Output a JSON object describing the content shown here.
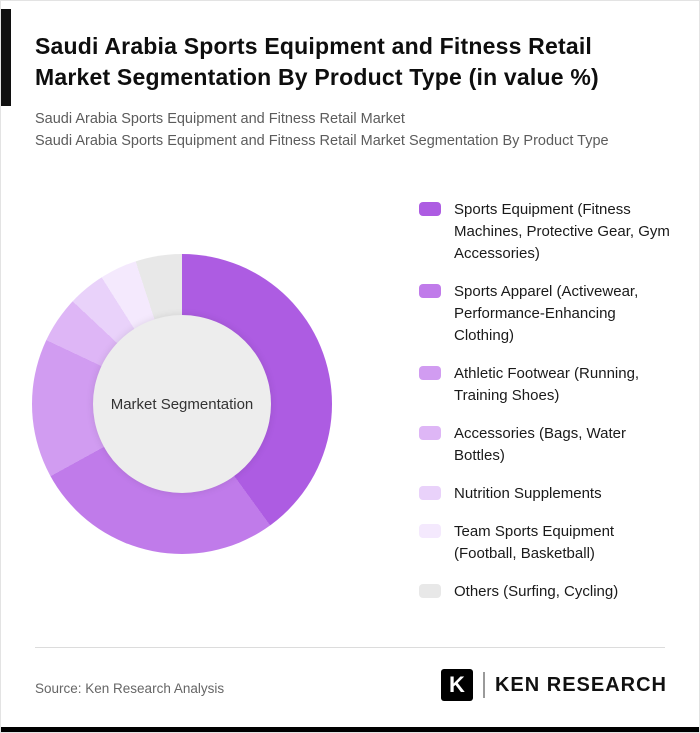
{
  "header": {
    "title": "Saudi Arabia Sports Equipment and Fitness Retail Market Segmentation By Product Type (in value %)",
    "subtitle1": "Saudi Arabia Sports Equipment and Fitness Retail Market",
    "subtitle2": "Saudi Arabia Sports Equipment and Fitness Retail Market Segmentation By Product Type"
  },
  "chart_data": {
    "type": "pie",
    "donut": true,
    "center_label": "Market Segmentation",
    "legend_position": "right",
    "center_fill": "#ededed",
    "segments": [
      {
        "label": "Sports Equipment (Fitness Machines, Protective Gear, Gym Accessories)",
        "value": 40,
        "color": "#ad5ce2"
      },
      {
        "label": "Sports Apparel (Activewear, Performance-Enhancing Clothing)",
        "value": 27,
        "color": "#c07bea"
      },
      {
        "label": "Athletic Footwear (Running, Training Shoes)",
        "value": 15,
        "color": "#d19cf1"
      },
      {
        "label": "Accessories (Bags, Water Bottles)",
        "value": 5,
        "color": "#deb6f6"
      },
      {
        "label": "Nutrition Supplements",
        "value": 4,
        "color": "#e9d2fa"
      },
      {
        "label": "Team Sports Equipment (Football, Basketball)",
        "value": 4,
        "color": "#f4e9fd"
      },
      {
        "label": "Others (Surfing, Cycling)",
        "value": 5,
        "color": "#e8e8e8"
      }
    ]
  },
  "footer": {
    "source": "Source: Ken Research Analysis",
    "logo_letter": "K",
    "logo_text": "KEN RESEARCH"
  },
  "accents": {
    "left_bar_color": "#101010",
    "bottom_bar_color": "#000000"
  }
}
